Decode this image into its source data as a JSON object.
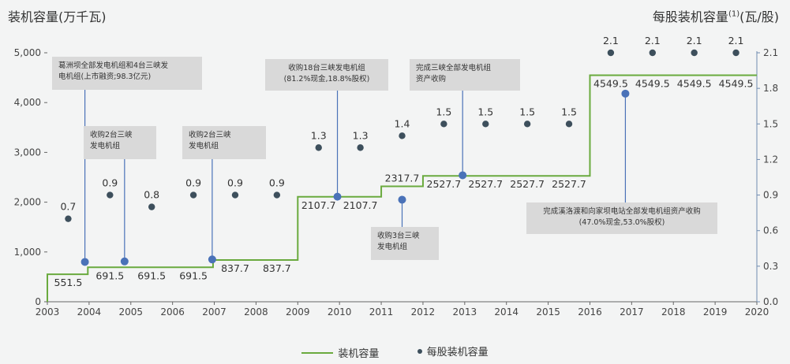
{
  "chart_data": {
    "type": "line",
    "title_left": "装机容量(万千瓦)",
    "title_right_prefix": "每股装机容量",
    "title_right_sup": "(1)",
    "title_right_suffix": "(瓦/股)",
    "x_ticks": [
      "2003",
      "2004",
      "2005",
      "2006",
      "2007",
      "2008",
      "2009",
      "2010",
      "2011",
      "2012",
      "2013",
      "2014",
      "2015",
      "2016",
      "2017",
      "2018",
      "2019",
      "2020"
    ],
    "y_left_ticks": [
      "0",
      "1,000",
      "2,000",
      "3,000",
      "4,000",
      "5,000"
    ],
    "y_right_ticks": [
      "0.0",
      "0.3",
      "0.6",
      "0.9",
      "1.2",
      "1.5",
      "1.8",
      "2.1"
    ],
    "ylim_left": [
      0,
      5000
    ],
    "ylim_right": [
      0,
      2.1
    ],
    "xlim": [
      2003,
      2020
    ],
    "capacity_series": {
      "name": "装机容量",
      "color": "#6aaa3e",
      "steps": [
        {
          "from": 2003,
          "to": 2003.97,
          "value": 551.5
        },
        {
          "from": 2003.97,
          "to": 2006.97,
          "value": 691.5
        },
        {
          "from": 2006.97,
          "to": 2009.0,
          "value": 837.7
        },
        {
          "from": 2009.0,
          "to": 2011.0,
          "value": 2107.7
        },
        {
          "from": 2011.0,
          "to": 2012.0,
          "value": 2317.7
        },
        {
          "from": 2012.0,
          "to": 2016.0,
          "value": 2527.7
        },
        {
          "from": 2016.0,
          "to": 2020.0,
          "value": 4549.5
        }
      ],
      "labels": [
        {
          "x": 2003.5,
          "text": "551.5",
          "pos": "below"
        },
        {
          "x": 2004.5,
          "text": "691.5",
          "pos": "below"
        },
        {
          "x": 2005.5,
          "text": "691.5",
          "pos": "below"
        },
        {
          "x": 2006.5,
          "text": "691.5",
          "pos": "below"
        },
        {
          "x": 2007.5,
          "text": "837.7",
          "pos": "below"
        },
        {
          "x": 2008.5,
          "text": "837.7",
          "pos": "below"
        },
        {
          "x": 2009.5,
          "text": "2107.7",
          "pos": "below"
        },
        {
          "x": 2010.5,
          "text": "2107.7",
          "pos": "below"
        },
        {
          "x": 2011.5,
          "text": "2317.7",
          "pos": "above"
        },
        {
          "x": 2012.5,
          "text": "2527.7",
          "pos": "below"
        },
        {
          "x": 2013.5,
          "text": "2527.7",
          "pos": "below"
        },
        {
          "x": 2014.5,
          "text": "2527.7",
          "pos": "below"
        },
        {
          "x": 2015.5,
          "text": "2527.7",
          "pos": "below"
        },
        {
          "x": 2016.5,
          "text": "4549.5",
          "pos": "below"
        },
        {
          "x": 2017.5,
          "text": "4549.5",
          "pos": "below"
        },
        {
          "x": 2018.5,
          "text": "4549.5",
          "pos": "below"
        },
        {
          "x": 2019.5,
          "text": "4549.5",
          "pos": "below"
        }
      ]
    },
    "per_share_series": {
      "name": "每股装机容量",
      "color": "#3d4f5c",
      "points": [
        {
          "x": 2003.5,
          "y": 0.7,
          "label": "0.7"
        },
        {
          "x": 2004.5,
          "y": 0.9,
          "label": "0.9"
        },
        {
          "x": 2005.5,
          "y": 0.8,
          "label": "0.8"
        },
        {
          "x": 2006.5,
          "y": 0.9,
          "label": "0.9"
        },
        {
          "x": 2007.5,
          "y": 0.9,
          "label": "0.9"
        },
        {
          "x": 2008.5,
          "y": 0.9,
          "label": "0.9"
        },
        {
          "x": 2009.5,
          "y": 1.3,
          "label": "1.3"
        },
        {
          "x": 2010.5,
          "y": 1.3,
          "label": "1.3"
        },
        {
          "x": 2011.5,
          "y": 1.4,
          "label": "1.4"
        },
        {
          "x": 2012.5,
          "y": 1.5,
          "label": "1.5"
        },
        {
          "x": 2013.5,
          "y": 1.5,
          "label": "1.5"
        },
        {
          "x": 2014.5,
          "y": 1.5,
          "label": "1.5"
        },
        {
          "x": 2015.5,
          "y": 1.5,
          "label": "1.5"
        },
        {
          "x": 2016.5,
          "y": 2.1,
          "label": "2.1"
        },
        {
          "x": 2017.5,
          "y": 2.1,
          "label": "2.1"
        },
        {
          "x": 2018.5,
          "y": 2.1,
          "label": "2.1"
        },
        {
          "x": 2019.5,
          "y": 2.1,
          "label": "2.1"
        }
      ]
    },
    "events": [
      {
        "x": 2003.9,
        "y_left": 800,
        "text": "葛洲坝全部发电机组和4台三峡发\n电机组(上市融资;98.3亿元)"
      },
      {
        "x": 2004.85,
        "y_left": 810,
        "text": "收购2台三峡\n发电机组"
      },
      {
        "x": 2006.95,
        "y_left": 850,
        "text": "收购2台三峡\n发电机组"
      },
      {
        "x": 2009.95,
        "y_left": 2110,
        "text": "收购18台三峡发电机组\n(81.2%现金,18.8%股权)"
      },
      {
        "x": 2011.5,
        "y_left": 2050,
        "text": "收购3台三峡\n发电机组"
      },
      {
        "x": 2012.95,
        "y_left": 2540,
        "text": "完成三峡全部发电机组\n资产收购"
      },
      {
        "x": 2016.85,
        "y_left": 4180,
        "text": "完成溪洛渡和向家坝电站全部发电机组资产收购\n(47.0%现金,53.0%股权)"
      }
    ],
    "event_marker_color": "#4a72b8",
    "legend": [
      "装机容量",
      "每股装机容量"
    ],
    "legend_position": "bottom-center"
  }
}
